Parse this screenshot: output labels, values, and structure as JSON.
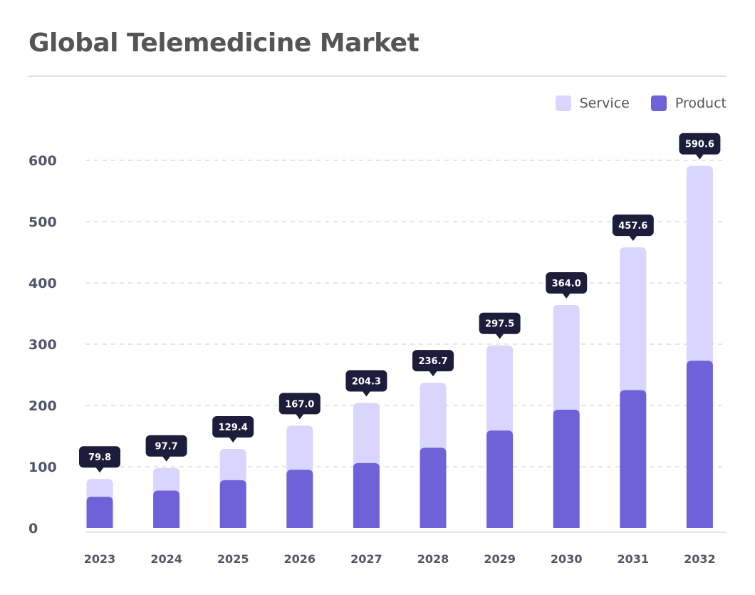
{
  "title": "Global Telemedicine Market",
  "colors": {
    "service": "#d9d5fc",
    "product": "#6f61d8",
    "tag_bg": "#1e1c3b",
    "grid": "#dddddd",
    "axis_text": "#54546a"
  },
  "legend": [
    {
      "label": "Service",
      "color": "#d9d5fc"
    },
    {
      "label": "Product",
      "color": "#6f61d8"
    }
  ],
  "chart_data": {
    "type": "bar",
    "stacked": true,
    "categories": [
      "2023",
      "2024",
      "2025",
      "2026",
      "2027",
      "2028",
      "2029",
      "2030",
      "2031",
      "2032"
    ],
    "series": [
      {
        "name": "Product",
        "values": [
          51,
          61,
          78,
          95,
          106,
          131,
          159,
          193,
          225,
          273
        ]
      },
      {
        "name": "Service",
        "values": [
          29,
          37,
          51,
          72,
          98,
          106,
          139,
          171,
          233,
          318
        ]
      }
    ],
    "totals": [
      "79.8",
      "97.7",
      "129.4",
      "167.0",
      "204.3",
      "236.7",
      "297.5",
      "364.0",
      "457.6",
      "590.6"
    ],
    "yticks": [
      0,
      100,
      200,
      300,
      400,
      500,
      600
    ],
    "ylim": [
      0,
      600
    ],
    "grid": true,
    "legend_position": "top-right",
    "xlabel": "",
    "ylabel": ""
  }
}
